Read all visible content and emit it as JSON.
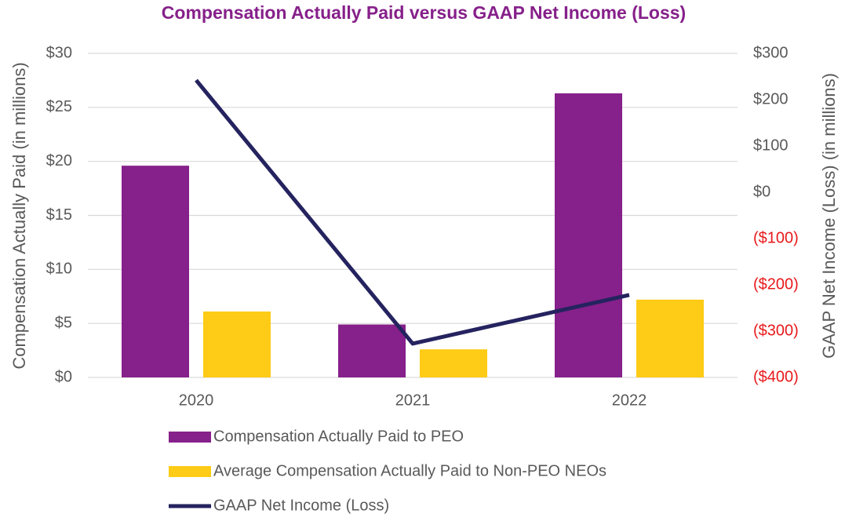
{
  "chart_data": {
    "type": "bar_line",
    "title": "Compensation Actually Paid versus GAAP Net Income (Loss)",
    "y_label": "Compensation Actually Paid (in millions)",
    "y2_label": "GAAP Net Income (Loss) (in millions)",
    "categories": [
      "2020",
      "2021",
      "2022"
    ],
    "series": [
      {
        "name": "Compensation Actually Paid to PEO",
        "type": "bar",
        "color": "#86208a",
        "values": [
          19.6,
          4.9,
          26.3
        ]
      },
      {
        "name": "Average Compensation Actually Paid to Non-PEO NEOs",
        "type": "bar",
        "color": "#fecb16",
        "values": [
          6.1,
          2.6,
          7.2
        ]
      },
      {
        "name": "GAAP Net Income (Loss)",
        "type": "line",
        "axis": "y2",
        "color": "#25235f",
        "values": [
          242,
          -327,
          -222
        ]
      }
    ],
    "ylim": [
      0,
      30
    ],
    "yticks": [
      {
        "value": 0,
        "label": "$0"
      },
      {
        "value": 5,
        "label": "$5"
      },
      {
        "value": 10,
        "label": "$10"
      },
      {
        "value": 15,
        "label": "$15"
      },
      {
        "value": 20,
        "label": "$20"
      },
      {
        "value": 25,
        "label": "$25"
      },
      {
        "value": 30,
        "label": "$30"
      }
    ],
    "y2lim": [
      -400,
      300
    ],
    "y2ticks": [
      {
        "value": -400,
        "label": "($400)"
      },
      {
        "value": -300,
        "label": "($300)"
      },
      {
        "value": -200,
        "label": "($200)"
      },
      {
        "value": -100,
        "label": "($100)"
      },
      {
        "value": 0,
        "label": "$0"
      },
      {
        "value": 100,
        "label": "$100"
      },
      {
        "value": 200,
        "label": "$200"
      },
      {
        "value": 300,
        "label": "$300"
      }
    ],
    "y2_negative_label_color": "#e8191c",
    "grid": true,
    "legend": "bottom"
  }
}
